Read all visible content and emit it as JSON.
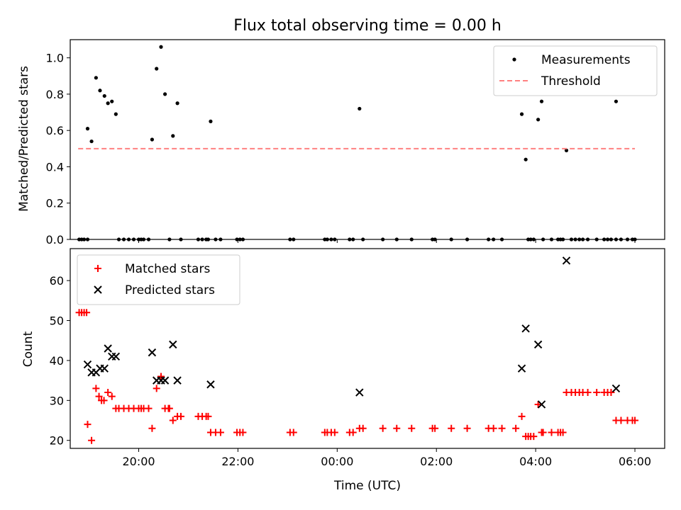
{
  "chart_data": [
    {
      "type": "scatter",
      "title": "Flux total observing time = 0.00 h",
      "xlabel": "",
      "ylabel": "Matched/Predicted stars",
      "xlim": [
        18.62,
        30.6
      ],
      "ylim": [
        0.0,
        1.1
      ],
      "x_ticks": [
        "20:00",
        "22:00",
        "00:00",
        "02:00",
        "04:00",
        "06:00"
      ],
      "x_tick_values": [
        20,
        22,
        24,
        26,
        28,
        30
      ],
      "y_ticks": [
        "0.0",
        "0.2",
        "0.4",
        "0.6",
        "0.8",
        "1.0"
      ],
      "y_tick_values": [
        0.0,
        0.2,
        0.4,
        0.6,
        0.8,
        1.0
      ],
      "legend_position": "upper right",
      "series": [
        {
          "name": "Measurements",
          "marker": "dot",
          "color": "#000000",
          "x": [
            18.97,
            19.05,
            19.14,
            19.22,
            19.31,
            19.38,
            19.46,
            19.54,
            20.27,
            20.36,
            20.45,
            20.53,
            20.69,
            20.78,
            21.45,
            24.45,
            27.72,
            27.8,
            28.05,
            28.12,
            28.62,
            29.62
          ],
          "y": [
            0.61,
            0.54,
            0.89,
            0.82,
            0.79,
            0.75,
            0.76,
            0.69,
            0.55,
            0.94,
            1.06,
            0.8,
            0.57,
            0.75,
            0.65,
            0.72,
            0.69,
            0.44,
            0.66,
            0.76,
            0.49,
            0.76
          ]
        },
        {
          "name": "Measurements",
          "marker": "dot",
          "color": "#000000",
          "x": [
            18.8,
            18.85,
            18.9,
            18.97,
            19.6,
            19.7,
            19.8,
            19.9,
            20.0,
            20.05,
            20.1,
            20.2,
            20.62,
            20.85,
            21.2,
            21.28,
            21.36,
            21.4,
            21.55,
            21.65,
            21.98,
            22.04,
            22.1,
            23.05,
            23.12,
            23.75,
            23.8,
            23.88,
            23.95,
            24.25,
            24.32,
            24.52,
            24.92,
            25.2,
            25.5,
            25.92,
            25.97,
            26.3,
            26.62,
            27.05,
            27.15,
            27.32,
            27.85,
            27.9,
            27.96,
            28.15,
            28.32,
            28.45,
            28.5,
            28.55,
            28.72,
            28.8,
            28.88,
            28.95,
            29.05,
            29.23,
            29.38,
            29.45,
            29.52,
            29.62,
            29.72,
            29.85,
            29.95,
            30.0
          ],
          "y": [
            0,
            0,
            0,
            0,
            0,
            0,
            0,
            0,
            0,
            0,
            0,
            0,
            0,
            0,
            0,
            0,
            0,
            0,
            0,
            0,
            0,
            0,
            0,
            0,
            0,
            0,
            0,
            0,
            0,
            0,
            0,
            0,
            0,
            0,
            0,
            0,
            0,
            0,
            0,
            0,
            0,
            0,
            0,
            0,
            0,
            0,
            0,
            0,
            0,
            0,
            0,
            0,
            0,
            0,
            0,
            0,
            0,
            0,
            0,
            0,
            0,
            0,
            0,
            0
          ]
        },
        {
          "name": "Threshold",
          "kind": "hline",
          "style": "dashed",
          "color": "#ff8080",
          "y": 0.5,
          "x": [
            18.78,
            30.0
          ]
        }
      ]
    },
    {
      "type": "scatter",
      "title": "",
      "xlabel": "Time (UTC)",
      "ylabel": "Count",
      "xlim": [
        18.62,
        30.6
      ],
      "ylim": [
        18.0,
        68.0
      ],
      "x_ticks": [
        "20:00",
        "22:00",
        "00:00",
        "02:00",
        "04:00",
        "06:00"
      ],
      "x_tick_values": [
        20,
        22,
        24,
        26,
        28,
        30
      ],
      "y_ticks": [
        "20",
        "30",
        "40",
        "50",
        "60"
      ],
      "y_tick_values": [
        20,
        30,
        40,
        50,
        60
      ],
      "legend_position": "upper left",
      "series": [
        {
          "name": "Matched stars",
          "marker": "plus",
          "color": "#ff0000",
          "x": [
            18.8,
            18.85,
            18.9,
            18.95,
            18.97,
            19.05,
            19.14,
            19.2,
            19.25,
            19.3,
            19.38,
            19.46,
            19.54,
            19.6,
            19.7,
            19.8,
            19.9,
            20.0,
            20.05,
            20.1,
            20.2,
            20.27,
            20.36,
            20.45,
            20.53,
            20.6,
            20.62,
            20.69,
            20.78,
            20.85,
            21.2,
            21.28,
            21.36,
            21.4,
            21.45,
            21.55,
            21.65,
            21.98,
            22.04,
            22.1,
            23.05,
            23.12,
            23.75,
            23.8,
            23.88,
            23.95,
            24.25,
            24.32,
            24.45,
            24.52,
            24.92,
            25.2,
            25.5,
            25.92,
            25.97,
            26.3,
            26.62,
            27.05,
            27.15,
            27.32,
            27.6,
            27.72,
            27.8,
            27.85,
            27.9,
            27.96,
            28.05,
            28.12,
            28.15,
            28.32,
            28.45,
            28.5,
            28.55,
            28.62,
            28.72,
            28.8,
            28.88,
            28.95,
            29.05,
            29.23,
            29.38,
            29.45,
            29.52,
            29.62,
            29.72,
            29.85,
            29.95,
            30.0
          ],
          "y": [
            52,
            52,
            52,
            52,
            24,
            20,
            33,
            31,
            30,
            30,
            32,
            31,
            28,
            28,
            28,
            28,
            28,
            28,
            28,
            28,
            28,
            23,
            33,
            36,
            28,
            28,
            28,
            25,
            26,
            26,
            26,
            26,
            26,
            26,
            22,
            22,
            22,
            22,
            22,
            22,
            22,
            22,
            22,
            22,
            22,
            22,
            22,
            22,
            23,
            23,
            23,
            23,
            23,
            23,
            23,
            23,
            23,
            23,
            23,
            23,
            23,
            26,
            21,
            21,
            21,
            21,
            29,
            22,
            22,
            22,
            22,
            22,
            22,
            32,
            32,
            32,
            32,
            32,
            32,
            32,
            32,
            32,
            32,
            25,
            25,
            25,
            25,
            25
          ]
        },
        {
          "name": "Predicted stars",
          "marker": "x",
          "color": "#000000",
          "x": [
            18.97,
            19.05,
            19.14,
            19.22,
            19.31,
            19.38,
            19.46,
            19.54,
            20.27,
            20.36,
            20.45,
            20.53,
            20.69,
            20.78,
            21.45,
            24.45,
            27.72,
            27.8,
            28.05,
            28.12,
            28.62,
            29.62
          ],
          "y": [
            39,
            37,
            37,
            38,
            38,
            43,
            41,
            41,
            42,
            35,
            35,
            35,
            44,
            35,
            34,
            32,
            38,
            48,
            44,
            29,
            65,
            33
          ]
        }
      ]
    }
  ]
}
